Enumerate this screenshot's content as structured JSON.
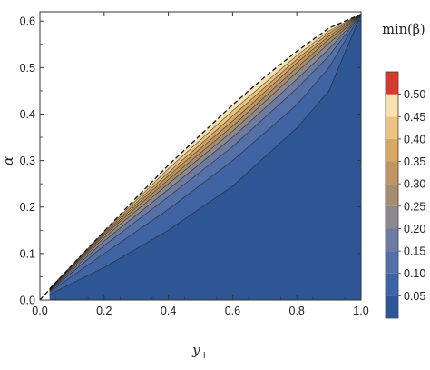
{
  "chart_data": {
    "type": "contour",
    "xlabel": "y",
    "xlabel_subscript": "+",
    "ylabel": "α",
    "xlim": [
      0.0,
      1.0
    ],
    "ylim": [
      0.0,
      0.62
    ],
    "x_ticks": [
      "0.0",
      "0.2",
      "0.4",
      "0.6",
      "0.8",
      "1.0"
    ],
    "y_ticks": [
      "0.0",
      "0.1",
      "0.2",
      "0.3",
      "0.4",
      "0.5",
      "0.6"
    ],
    "colorbar": {
      "title": "min(β)",
      "range": [
        0.0,
        0.55
      ],
      "tick_labels": [
        "0.05",
        "0.10",
        "0.15",
        "0.20",
        "0.25",
        "0.30",
        "0.35",
        "0.40",
        "0.45",
        "0.50"
      ],
      "levels": [
        0.0,
        0.05,
        0.1,
        0.15,
        0.2,
        0.25,
        0.3,
        0.35,
        0.4,
        0.45,
        0.5,
        0.55
      ],
      "band_colors": [
        "#2e5694",
        "#3f63a3",
        "#5470a8",
        "#6d7aa2",
        "#8d8a8e",
        "#a68d72",
        "#c09563",
        "#d6a864",
        "#ebc483",
        "#f6e1b0",
        "#d33b30"
      ]
    },
    "boundary": {
      "style": "dashed",
      "points": [
        [
          0.0,
          0.0
        ],
        [
          0.1,
          0.075
        ],
        [
          0.2,
          0.148
        ],
        [
          0.3,
          0.22
        ],
        [
          0.4,
          0.29
        ],
        [
          0.5,
          0.355
        ],
        [
          0.6,
          0.42
        ],
        [
          0.7,
          0.48
        ],
        [
          0.8,
          0.535
        ],
        [
          0.9,
          0.585
        ],
        [
          1.0,
          0.615
        ]
      ]
    },
    "contour_lines": [
      {
        "level": 0.05,
        "points": [
          [
            0.03,
            0.012
          ],
          [
            0.2,
            0.07
          ],
          [
            0.4,
            0.15
          ],
          [
            0.6,
            0.245
          ],
          [
            0.8,
            0.37
          ],
          [
            0.9,
            0.45
          ],
          [
            1.0,
            0.615
          ]
        ]
      },
      {
        "level": 0.1,
        "points": [
          [
            0.03,
            0.017
          ],
          [
            0.2,
            0.1
          ],
          [
            0.4,
            0.195
          ],
          [
            0.6,
            0.3
          ],
          [
            0.8,
            0.42
          ],
          [
            0.9,
            0.5
          ],
          [
            1.0,
            0.615
          ]
        ]
      },
      {
        "level": 0.15,
        "points": [
          [
            0.03,
            0.019
          ],
          [
            0.2,
            0.117
          ],
          [
            0.4,
            0.222
          ],
          [
            0.6,
            0.33
          ],
          [
            0.8,
            0.455
          ],
          [
            0.9,
            0.525
          ],
          [
            1.0,
            0.615
          ]
        ]
      },
      {
        "level": 0.2,
        "points": [
          [
            0.03,
            0.02
          ],
          [
            0.2,
            0.127
          ],
          [
            0.4,
            0.238
          ],
          [
            0.6,
            0.35
          ],
          [
            0.8,
            0.475
          ],
          [
            0.9,
            0.54
          ],
          [
            1.0,
            0.615
          ]
        ]
      },
      {
        "level": 0.25,
        "points": [
          [
            0.03,
            0.021
          ],
          [
            0.2,
            0.134
          ],
          [
            0.4,
            0.25
          ],
          [
            0.6,
            0.363
          ],
          [
            0.8,
            0.49
          ],
          [
            0.9,
            0.552
          ],
          [
            1.0,
            0.615
          ]
        ]
      },
      {
        "level": 0.3,
        "points": [
          [
            0.03,
            0.022
          ],
          [
            0.2,
            0.139
          ],
          [
            0.4,
            0.259
          ],
          [
            0.6,
            0.374
          ],
          [
            0.8,
            0.5
          ],
          [
            0.9,
            0.561
          ],
          [
            1.0,
            0.615
          ]
        ]
      },
      {
        "level": 0.35,
        "points": [
          [
            0.03,
            0.023
          ],
          [
            0.2,
            0.142
          ],
          [
            0.4,
            0.267
          ],
          [
            0.6,
            0.385
          ],
          [
            0.8,
            0.51
          ],
          [
            0.9,
            0.568
          ],
          [
            1.0,
            0.615
          ]
        ]
      },
      {
        "level": 0.4,
        "points": [
          [
            0.03,
            0.024
          ],
          [
            0.2,
            0.145
          ],
          [
            0.4,
            0.274
          ],
          [
            0.6,
            0.396
          ],
          [
            0.8,
            0.518
          ],
          [
            0.9,
            0.574
          ],
          [
            1.0,
            0.615
          ]
        ]
      },
      {
        "level": 0.45,
        "points": [
          [
            0.03,
            0.025
          ],
          [
            0.2,
            0.147
          ],
          [
            0.4,
            0.282
          ],
          [
            0.6,
            0.407
          ],
          [
            0.8,
            0.526
          ],
          [
            0.9,
            0.579
          ],
          [
            1.0,
            0.615
          ]
        ]
      }
    ]
  }
}
